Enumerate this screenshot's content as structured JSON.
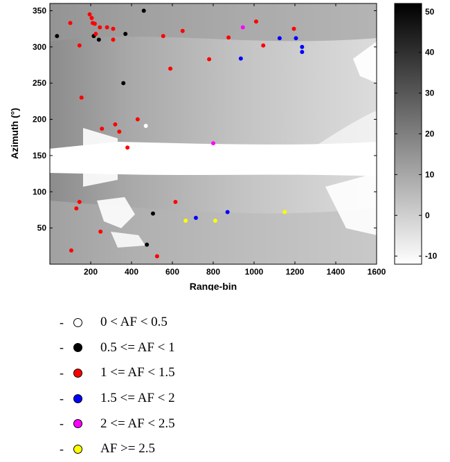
{
  "chart_data": {
    "type": "scatter",
    "xlabel": "Range-bin",
    "ylabel": "Azimuth (°)",
    "xlim": [
      0,
      1600
    ],
    "ylim": [
      0,
      360
    ],
    "x_ticks": [
      200,
      400,
      600,
      800,
      1000,
      1200,
      1400,
      1600
    ],
    "y_ticks": [
      50,
      100,
      150,
      200,
      250,
      300,
      350
    ],
    "background": "grayscale image (reflectivity map) with white no-data regions",
    "colorbar": {
      "range": [
        -12,
        52
      ],
      "ticks": [
        -10,
        0,
        10,
        20,
        30,
        40,
        50
      ],
      "colormap": "gray (white = low, black = high)"
    },
    "series": [
      {
        "name": "0 < AF < 0.5",
        "color": "#ffffff",
        "points": [
          [
            470,
            191
          ]
        ]
      },
      {
        "name": "0.5 <= AF < 1",
        "color": "#000000",
        "points": [
          [
            460,
            350
          ],
          [
            35,
            315
          ],
          [
            215,
            315
          ],
          [
            240,
            310
          ],
          [
            370,
            318
          ],
          [
            360,
            250
          ],
          [
            505,
            70
          ],
          [
            475,
            27
          ]
        ]
      },
      {
        "name": "1 <= AF < 1.5",
        "color": "#ff0000",
        "points": [
          [
            195,
            345
          ],
          [
            205,
            340
          ],
          [
            100,
            333
          ],
          [
            210,
            333
          ],
          [
            220,
            332
          ],
          [
            245,
            327
          ],
          [
            280,
            327
          ],
          [
            310,
            325
          ],
          [
            225,
            318
          ],
          [
            310,
            310
          ],
          [
            145,
            302
          ],
          [
            555,
            315
          ],
          [
            650,
            322
          ],
          [
            875,
            313
          ],
          [
            1010,
            335
          ],
          [
            1195,
            325
          ],
          [
            1045,
            302
          ],
          [
            780,
            283
          ],
          [
            590,
            270
          ],
          [
            155,
            230
          ],
          [
            430,
            200
          ],
          [
            255,
            187
          ],
          [
            320,
            193
          ],
          [
            340,
            183
          ],
          [
            380,
            161
          ],
          [
            130,
            77
          ],
          [
            145,
            86
          ],
          [
            615,
            86
          ],
          [
            248,
            45
          ],
          [
            105,
            19
          ],
          [
            525,
            11
          ]
        ]
      },
      {
        "name": "1.5 <= AF < 2",
        "color": "#0000ff",
        "points": [
          [
            1125,
            312
          ],
          [
            1205,
            312
          ],
          [
            1235,
            300
          ],
          [
            1235,
            293
          ],
          [
            935,
            284
          ],
          [
            870,
            72
          ],
          [
            715,
            64
          ]
        ]
      },
      {
        "name": "2 <= AF < 2.5",
        "color": "#ff00ff",
        "points": [
          [
            945,
            327
          ],
          [
            800,
            167
          ]
        ]
      },
      {
        "name": "AF >= 2.5",
        "color": "#ffff00",
        "points": [
          [
            665,
            60
          ],
          [
            810,
            60
          ],
          [
            1150,
            72
          ]
        ]
      }
    ]
  },
  "legend": {
    "items": [
      {
        "dash": "-",
        "label": "0 < AF < 0.5",
        "color": "#ffffff"
      },
      {
        "dash": "-",
        "label": "0.5 <= AF < 1",
        "color": "#000000"
      },
      {
        "dash": "-",
        "label": "1 <= AF < 1.5",
        "color": "#ff0000"
      },
      {
        "dash": "-",
        "label": "1.5 <= AF < 2",
        "color": "#0000ff"
      },
      {
        "dash": "-",
        "label": "2 <= AF < 2.5",
        "color": "#ff00ff"
      },
      {
        "dash": "-",
        "label": "AF >= 2.5",
        "color": "#ffff00"
      }
    ]
  }
}
